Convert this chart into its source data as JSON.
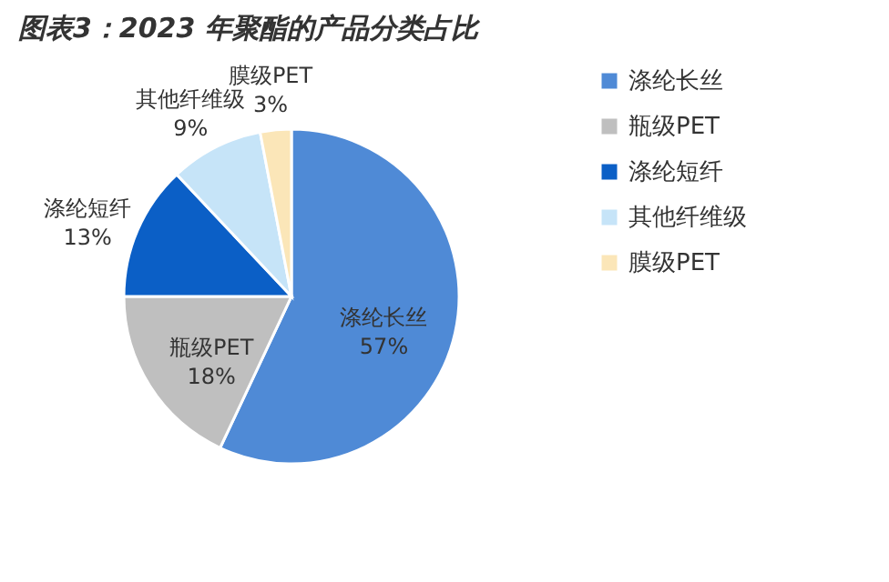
{
  "chart_data": {
    "type": "pie",
    "title": "图表3：2023 年聚酯的产品分类占比",
    "categories": [
      "涤纶长丝",
      "瓶级PET",
      "涤纶短纤",
      "其他纤维级",
      "膜级PET"
    ],
    "values": [
      57,
      18,
      13,
      9,
      3
    ],
    "colors": [
      "#4f8ad6",
      "#bfbfbf",
      "#0b5fc6",
      "#c6e4f8",
      "#fbe6b8"
    ],
    "value_labels": [
      "57%",
      "18%",
      "13%",
      "9%",
      "3%"
    ],
    "legend": "right"
  }
}
